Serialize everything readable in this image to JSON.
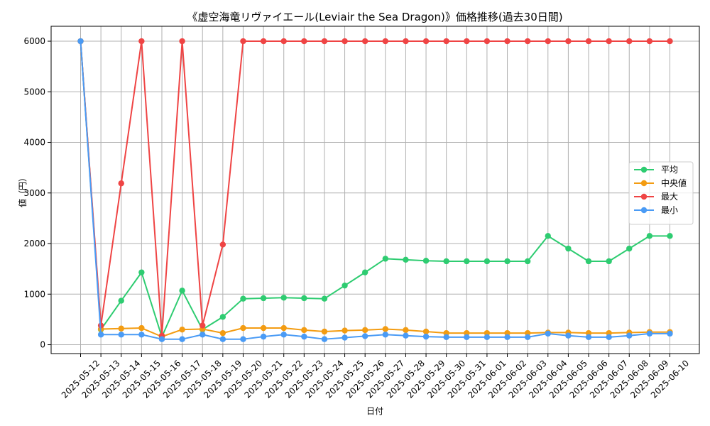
{
  "chart_data": {
    "type": "line",
    "title": "《虚空海竜リヴァイエール(Leviair the Sea Dragon)》価格推移(過去30日間)",
    "xlabel": "日付",
    "ylabel": "値（円）",
    "x": [
      "2025-05-12",
      "2025-05-13",
      "2025-05-14",
      "2025-05-15",
      "2025-05-16",
      "2025-05-17",
      "2025-05-18",
      "2025-05-19",
      "2025-05-20",
      "2025-05-21",
      "2025-05-22",
      "2025-05-23",
      "2025-05-24",
      "2025-05-25",
      "2025-05-26",
      "2025-05-27",
      "2025-05-28",
      "2025-05-29",
      "2025-05-30",
      "2025-05-31",
      "2025-06-01",
      "2025-06-02",
      "2025-06-03",
      "2025-06-04",
      "2025-06-05",
      "2025-06-06",
      "2025-06-07",
      "2025-06-08",
      "2025-06-09",
      "2025-06-10"
    ],
    "ylim": [
      -175,
      6295
    ],
    "yticks": [
      0,
      1000,
      2000,
      3000,
      4000,
      5000,
      6000
    ],
    "grid": true,
    "legend_loc": "center right",
    "series": [
      {
        "name": "平均",
        "color": "#2ecc71",
        "values": [
          6000,
          300,
          870,
          1430,
          155,
          1070,
          300,
          550,
          910,
          920,
          930,
          920,
          910,
          1170,
          1430,
          1700,
          1680,
          1660,
          1650,
          1650,
          1650,
          1650,
          1650,
          2150,
          1900,
          1650,
          1650,
          1900,
          2150,
          2150
        ]
      },
      {
        "name": "中央値",
        "color": "#f39c12",
        "values": [
          6000,
          310,
          320,
          330,
          160,
          300,
          310,
          230,
          330,
          330,
          330,
          290,
          260,
          280,
          290,
          310,
          290,
          260,
          230,
          230,
          230,
          230,
          230,
          240,
          240,
          230,
          230,
          240,
          250,
          250
        ]
      },
      {
        "name": "最大",
        "color": "#ef4444",
        "values": [
          6000,
          380,
          3190,
          6000,
          180,
          6000,
          380,
          1980,
          6000,
          6000,
          6000,
          6000,
          6000,
          6000,
          6000,
          6000,
          6000,
          6000,
          6000,
          6000,
          6000,
          6000,
          6000,
          6000,
          6000,
          6000,
          6000,
          6000,
          6000,
          6000
        ]
      },
      {
        "name": "最小",
        "color": "#4a9bf5",
        "values": [
          6000,
          200,
          200,
          200,
          110,
          110,
          200,
          110,
          110,
          160,
          200,
          160,
          110,
          140,
          170,
          200,
          180,
          160,
          150,
          150,
          150,
          150,
          150,
          220,
          180,
          150,
          150,
          180,
          220,
          220
        ]
      }
    ]
  }
}
